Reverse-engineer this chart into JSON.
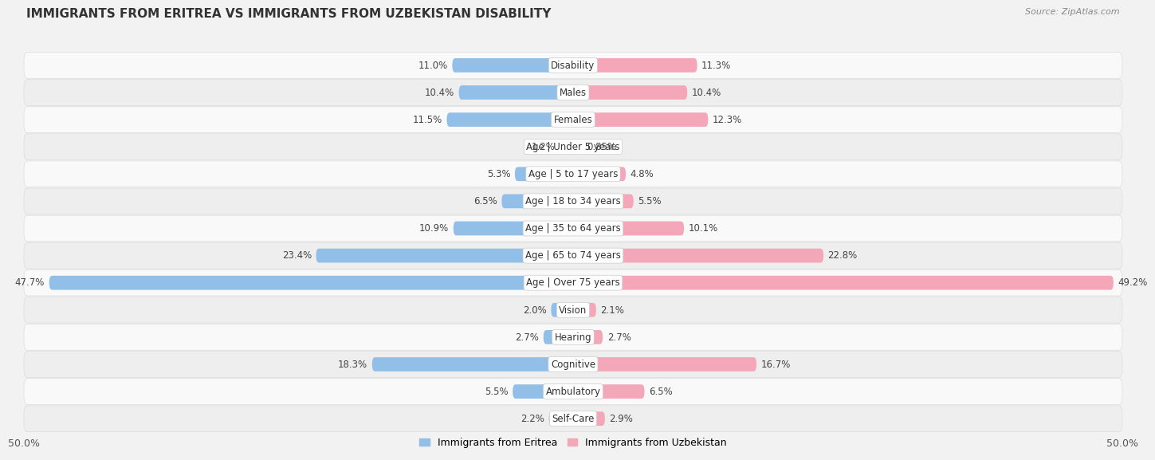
{
  "title": "IMMIGRANTS FROM ERITREA VS IMMIGRANTS FROM UZBEKISTAN DISABILITY",
  "source": "Source: ZipAtlas.com",
  "categories": [
    "Disability",
    "Males",
    "Females",
    "Age | Under 5 years",
    "Age | 5 to 17 years",
    "Age | 18 to 34 years",
    "Age | 35 to 64 years",
    "Age | 65 to 74 years",
    "Age | Over 75 years",
    "Vision",
    "Hearing",
    "Cognitive",
    "Ambulatory",
    "Self-Care"
  ],
  "eritrea_values": [
    11.0,
    10.4,
    11.5,
    1.2,
    5.3,
    6.5,
    10.9,
    23.4,
    47.7,
    2.0,
    2.7,
    18.3,
    5.5,
    2.2
  ],
  "uzbekistan_values": [
    11.3,
    10.4,
    12.3,
    0.85,
    4.8,
    5.5,
    10.1,
    22.8,
    49.2,
    2.1,
    2.7,
    16.7,
    6.5,
    2.9
  ],
  "eritrea_label": "Immigrants from Eritrea",
  "uzbekistan_label": "Immigrants from Uzbekistan",
  "eritrea_color": "#92bfe8",
  "uzbekistan_color": "#f4a7b9",
  "axis_limit": 50.0,
  "bg_color": "#f2f2f2",
  "row_color_even": "#f9f9f9",
  "row_color_odd": "#eeeeee",
  "title_fontsize": 11,
  "bar_height": 0.52,
  "value_fontsize": 8.5,
  "label_fontsize": 8.5
}
